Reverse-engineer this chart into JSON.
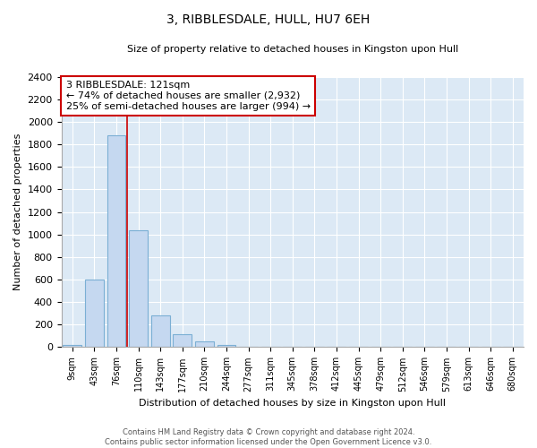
{
  "title": "3, RIBBLESDALE, HULL, HU7 6EH",
  "subtitle": "Size of property relative to detached houses in Kingston upon Hull",
  "xlabel": "Distribution of detached houses by size in Kingston upon Hull",
  "ylabel": "Number of detached properties",
  "bar_labels": [
    "9sqm",
    "43sqm",
    "76sqm",
    "110sqm",
    "143sqm",
    "177sqm",
    "210sqm",
    "244sqm",
    "277sqm",
    "311sqm",
    "345sqm",
    "378sqm",
    "412sqm",
    "445sqm",
    "479sqm",
    "512sqm",
    "546sqm",
    "579sqm",
    "613sqm",
    "646sqm",
    "680sqm"
  ],
  "bar_values": [
    20,
    600,
    1880,
    1040,
    280,
    115,
    48,
    20,
    0,
    0,
    0,
    0,
    0,
    0,
    0,
    0,
    0,
    0,
    0,
    0,
    0
  ],
  "bar_color": "#c5d8f0",
  "bar_edge_color": "#7bafd4",
  "property_line_color": "#cc0000",
  "annotation_line1": "3 RIBBLESDALE: 121sqm",
  "annotation_line2": "← 74% of detached houses are smaller (2,932)",
  "annotation_line3": "25% of semi-detached houses are larger (994) →",
  "annotation_box_color": "#ffffff",
  "annotation_box_edge": "#cc0000",
  "ylim": [
    0,
    2400
  ],
  "yticks": [
    0,
    200,
    400,
    600,
    800,
    1000,
    1200,
    1400,
    1600,
    1800,
    2000,
    2200,
    2400
  ],
  "footer_line1": "Contains HM Land Registry data © Crown copyright and database right 2024.",
  "footer_line2": "Contains public sector information licensed under the Open Government Licence v3.0.",
  "bg_color": "#ffffff",
  "plot_bg_color": "#dce9f5",
  "grid_color": "#ffffff"
}
